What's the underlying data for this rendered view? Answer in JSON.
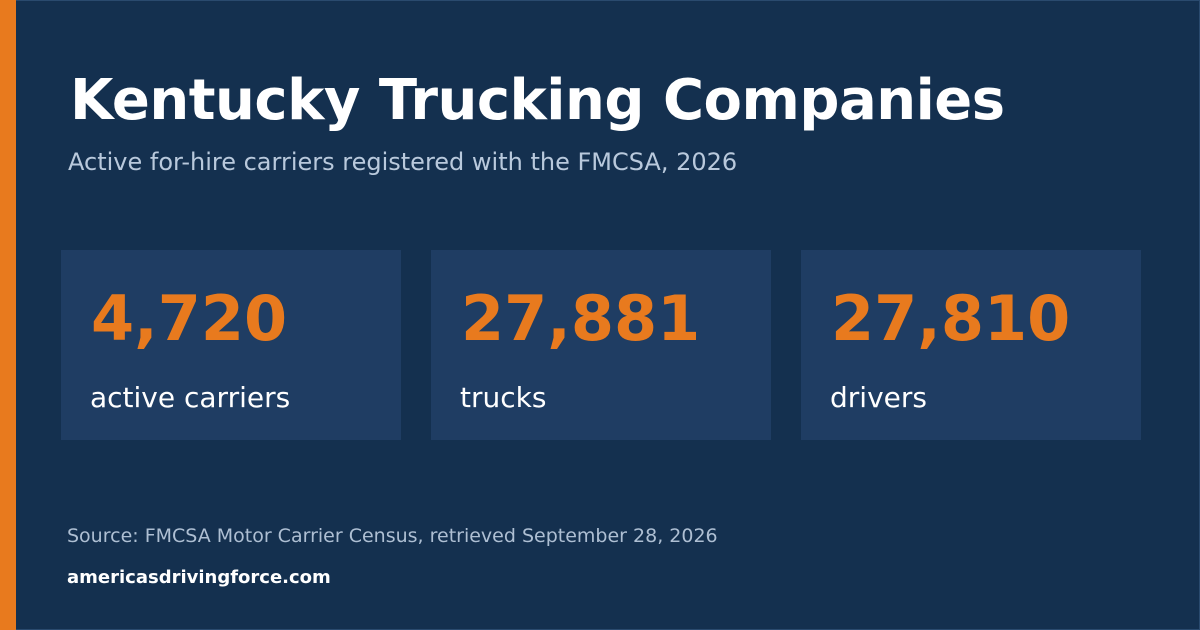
{
  "header": {
    "title": "Kentucky Trucking Companies",
    "subtitle": "Active for-hire carriers registered with the FMCSA, 2026"
  },
  "stats": [
    {
      "value": "4,720",
      "label": "active carriers"
    },
    {
      "value": "27,881",
      "label": "trucks"
    },
    {
      "value": "27,810",
      "label": "drivers"
    }
  ],
  "footer": {
    "source": "Source: FMCSA Motor Carrier Census, retrieved September 28, 2026",
    "site": "americasdrivingforce.com"
  },
  "colors": {
    "background": "#14304f",
    "card": "#1f3d63",
    "accent": "#e87a1e",
    "title": "#ffffff",
    "subtitle": "#b9c9dc"
  }
}
